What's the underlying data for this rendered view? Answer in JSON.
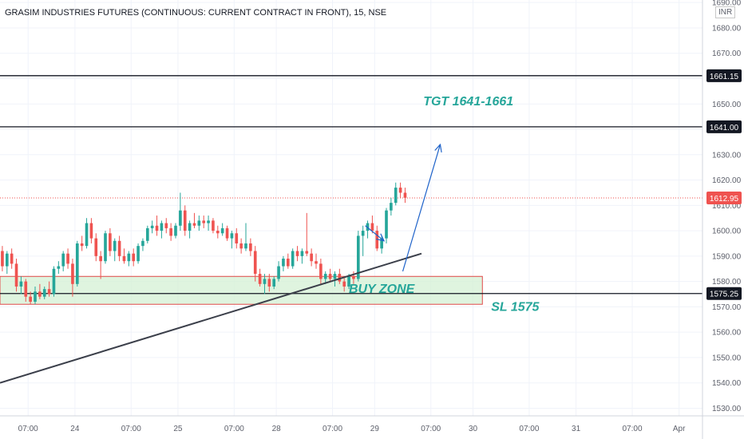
{
  "header": {
    "title": "GRASIM INDUSTRIES FUTURES (CONTINUOUS: CURRENT CONTRACT IN FRONT), 15, NSE",
    "currency": "INR"
  },
  "colors": {
    "up": "#26a69a",
    "down": "#ef5350",
    "annotation": "#26a69a",
    "arrow": "#1e62c9",
    "zone_fill": "#d4f0d4",
    "zone_border": "#e04848",
    "line": "#131722",
    "grid": "#f0f3fa"
  },
  "chart_data": {
    "type": "candlestick",
    "symbol": "GRASIM",
    "timeframe": "15",
    "exchange": "NSE",
    "ylim": [
      1527,
      1691
    ],
    "y_ticks": [
      "1530.00",
      "1540.00",
      "1550.00",
      "1560.00",
      "1570.00",
      "1580.00",
      "1590.00",
      "1600.00",
      "1610.00",
      "1620.00",
      "1630.00",
      "1640.00",
      "1650.00",
      "1660.00",
      "1670.00",
      "1680.00",
      "1690.00"
    ],
    "x_ticks": [
      "07:00",
      "24",
      "07:00",
      "25",
      "07:00",
      "28",
      "07:00",
      "29",
      "07:00",
      "30",
      "07:00",
      "31",
      "07:00",
      "Apr"
    ],
    "bar_range": [
      0,
      150
    ],
    "x_tick_bars": [
      6,
      16,
      28,
      38,
      50,
      59,
      71,
      80,
      92,
      101,
      113,
      123,
      135,
      145
    ],
    "candles": [
      {
        "o": 1592,
        "h": 1594,
        "l": 1584,
        "c": 1586
      },
      {
        "o": 1586,
        "h": 1592,
        "l": 1583,
        "c": 1591
      },
      {
        "o": 1591,
        "h": 1593,
        "l": 1585,
        "c": 1587
      },
      {
        "o": 1587,
        "h": 1589,
        "l": 1576,
        "c": 1578
      },
      {
        "o": 1578,
        "h": 1582,
        "l": 1575,
        "c": 1580
      },
      {
        "o": 1580,
        "h": 1581,
        "l": 1572,
        "c": 1574
      },
      {
        "o": 1574,
        "h": 1576,
        "l": 1571,
        "c": 1572
      },
      {
        "o": 1572,
        "h": 1578,
        "l": 1571,
        "c": 1576
      },
      {
        "o": 1576,
        "h": 1579,
        "l": 1573,
        "c": 1574
      },
      {
        "o": 1574,
        "h": 1578,
        "l": 1573,
        "c": 1577
      },
      {
        "o": 1577,
        "h": 1580,
        "l": 1574,
        "c": 1575
      },
      {
        "o": 1575,
        "h": 1586,
        "l": 1574,
        "c": 1585
      },
      {
        "o": 1585,
        "h": 1588,
        "l": 1583,
        "c": 1586
      },
      {
        "o": 1586,
        "h": 1592,
        "l": 1584,
        "c": 1591
      },
      {
        "o": 1591,
        "h": 1593,
        "l": 1585,
        "c": 1587
      },
      {
        "o": 1587,
        "h": 1589,
        "l": 1574,
        "c": 1579
      },
      {
        "o": 1579,
        "h": 1596,
        "l": 1578,
        "c": 1595
      },
      {
        "o": 1595,
        "h": 1598,
        "l": 1592,
        "c": 1594
      },
      {
        "o": 1594,
        "h": 1605,
        "l": 1593,
        "c": 1603
      },
      {
        "o": 1603,
        "h": 1605,
        "l": 1595,
        "c": 1597
      },
      {
        "o": 1597,
        "h": 1599,
        "l": 1588,
        "c": 1590
      },
      {
        "o": 1590,
        "h": 1592,
        "l": 1581,
        "c": 1588
      },
      {
        "o": 1588,
        "h": 1600,
        "l": 1587,
        "c": 1599
      },
      {
        "o": 1599,
        "h": 1601,
        "l": 1590,
        "c": 1592
      },
      {
        "o": 1592,
        "h": 1597,
        "l": 1588,
        "c": 1596
      },
      {
        "o": 1596,
        "h": 1598,
        "l": 1588,
        "c": 1590
      },
      {
        "o": 1590,
        "h": 1593,
        "l": 1587,
        "c": 1588
      },
      {
        "o": 1588,
        "h": 1592,
        "l": 1586,
        "c": 1591
      },
      {
        "o": 1591,
        "h": 1593,
        "l": 1586,
        "c": 1588
      },
      {
        "o": 1588,
        "h": 1595,
        "l": 1587,
        "c": 1594
      },
      {
        "o": 1594,
        "h": 1597,
        "l": 1592,
        "c": 1596
      },
      {
        "o": 1596,
        "h": 1602,
        "l": 1595,
        "c": 1601
      },
      {
        "o": 1601,
        "h": 1604,
        "l": 1599,
        "c": 1602
      },
      {
        "o": 1602,
        "h": 1606,
        "l": 1598,
        "c": 1600
      },
      {
        "o": 1600,
        "h": 1604,
        "l": 1597,
        "c": 1603
      },
      {
        "o": 1603,
        "h": 1605,
        "l": 1599,
        "c": 1601
      },
      {
        "o": 1601,
        "h": 1603,
        "l": 1596,
        "c": 1598
      },
      {
        "o": 1598,
        "h": 1603,
        "l": 1597,
        "c": 1602
      },
      {
        "o": 1602,
        "h": 1615,
        "l": 1600,
        "c": 1608
      },
      {
        "o": 1608,
        "h": 1610,
        "l": 1598,
        "c": 1600
      },
      {
        "o": 1600,
        "h": 1604,
        "l": 1597,
        "c": 1603
      },
      {
        "o": 1603,
        "h": 1607,
        "l": 1601,
        "c": 1602
      },
      {
        "o": 1602,
        "h": 1606,
        "l": 1600,
        "c": 1604
      },
      {
        "o": 1604,
        "h": 1606,
        "l": 1601,
        "c": 1603
      },
      {
        "o": 1603,
        "h": 1606,
        "l": 1600,
        "c": 1604
      },
      {
        "o": 1604,
        "h": 1605,
        "l": 1599,
        "c": 1600
      },
      {
        "o": 1600,
        "h": 1602,
        "l": 1597,
        "c": 1599
      },
      {
        "o": 1599,
        "h": 1603,
        "l": 1598,
        "c": 1601
      },
      {
        "o": 1601,
        "h": 1602,
        "l": 1596,
        "c": 1597
      },
      {
        "o": 1597,
        "h": 1600,
        "l": 1593,
        "c": 1599
      },
      {
        "o": 1599,
        "h": 1601,
        "l": 1593,
        "c": 1595
      },
      {
        "o": 1595,
        "h": 1597,
        "l": 1591,
        "c": 1593
      },
      {
        "o": 1593,
        "h": 1603,
        "l": 1592,
        "c": 1595
      },
      {
        "o": 1595,
        "h": 1597,
        "l": 1590,
        "c": 1592
      },
      {
        "o": 1592,
        "h": 1594,
        "l": 1580,
        "c": 1583
      },
      {
        "o": 1583,
        "h": 1585,
        "l": 1578,
        "c": 1579
      },
      {
        "o": 1579,
        "h": 1583,
        "l": 1575,
        "c": 1581
      },
      {
        "o": 1581,
        "h": 1583,
        "l": 1576,
        "c": 1578
      },
      {
        "o": 1578,
        "h": 1582,
        "l": 1577,
        "c": 1581
      },
      {
        "o": 1581,
        "h": 1588,
        "l": 1580,
        "c": 1586
      },
      {
        "o": 1586,
        "h": 1590,
        "l": 1584,
        "c": 1589
      },
      {
        "o": 1589,
        "h": 1591,
        "l": 1585,
        "c": 1586
      },
      {
        "o": 1586,
        "h": 1593,
        "l": 1585,
        "c": 1592
      },
      {
        "o": 1592,
        "h": 1594,
        "l": 1588,
        "c": 1590
      },
      {
        "o": 1590,
        "h": 1593,
        "l": 1587,
        "c": 1592
      },
      {
        "o": 1592,
        "h": 1607,
        "l": 1590,
        "c": 1591
      },
      {
        "o": 1591,
        "h": 1593,
        "l": 1586,
        "c": 1588
      },
      {
        "o": 1588,
        "h": 1591,
        "l": 1585,
        "c": 1587
      },
      {
        "o": 1587,
        "h": 1589,
        "l": 1579,
        "c": 1581
      },
      {
        "o": 1581,
        "h": 1584,
        "l": 1579,
        "c": 1583
      },
      {
        "o": 1583,
        "h": 1585,
        "l": 1580,
        "c": 1581
      },
      {
        "o": 1581,
        "h": 1584,
        "l": 1578,
        "c": 1583
      },
      {
        "o": 1583,
        "h": 1585,
        "l": 1579,
        "c": 1580
      },
      {
        "o": 1580,
        "h": 1582,
        "l": 1576,
        "c": 1578
      },
      {
        "o": 1578,
        "h": 1583,
        "l": 1577,
        "c": 1582
      },
      {
        "o": 1582,
        "h": 1584,
        "l": 1579,
        "c": 1581
      },
      {
        "o": 1581,
        "h": 1600,
        "l": 1580,
        "c": 1598
      },
      {
        "o": 1598,
        "h": 1602,
        "l": 1590,
        "c": 1600
      },
      {
        "o": 1600,
        "h": 1604,
        "l": 1597,
        "c": 1603
      },
      {
        "o": 1603,
        "h": 1606,
        "l": 1599,
        "c": 1600
      },
      {
        "o": 1600,
        "h": 1602,
        "l": 1592,
        "c": 1593
      },
      {
        "o": 1593,
        "h": 1598,
        "l": 1591,
        "c": 1597
      },
      {
        "o": 1597,
        "h": 1609,
        "l": 1595,
        "c": 1608
      },
      {
        "o": 1608,
        "h": 1613,
        "l": 1606,
        "c": 1611
      },
      {
        "o": 1611,
        "h": 1619,
        "l": 1610,
        "c": 1617
      },
      {
        "o": 1617,
        "h": 1619,
        "l": 1613,
        "c": 1615
      },
      {
        "o": 1615,
        "h": 1617,
        "l": 1611,
        "c": 1613
      }
    ],
    "last_price": 1612.95,
    "price_labels": [
      {
        "price": 1661.15,
        "text": "1661.15"
      },
      {
        "price": 1641.0,
        "text": "1641.00"
      },
      {
        "price": 1612.95,
        "text": "1612.95"
      },
      {
        "price": 1575.25,
        "text": "1575.25"
      }
    ],
    "horizontal_lines": [
      1661.15,
      1641.0,
      1575.25
    ],
    "zone": {
      "label": "BUY ZONE",
      "top": 1582,
      "bottom": 1571,
      "x_start": 0,
      "x_end": 103
    },
    "trendline": {
      "x1": 0,
      "y1": 1540,
      "x2": 90,
      "y2": 1591
    },
    "arrows": [
      {
        "x1": 78,
        "y1": 1602,
        "x2": 82,
        "y2": 1596
      },
      {
        "x1": 86,
        "y1": 1584,
        "x2": 94,
        "y2": 1634
      }
    ],
    "annotations": [
      {
        "text": "TGT 1641-1661",
        "x": 100,
        "price": 1651
      },
      {
        "text": "BUY ZONE",
        "x": 81.5,
        "price": 1577
      },
      {
        "text": "SL 1575",
        "x": 110,
        "price": 1570
      }
    ]
  }
}
